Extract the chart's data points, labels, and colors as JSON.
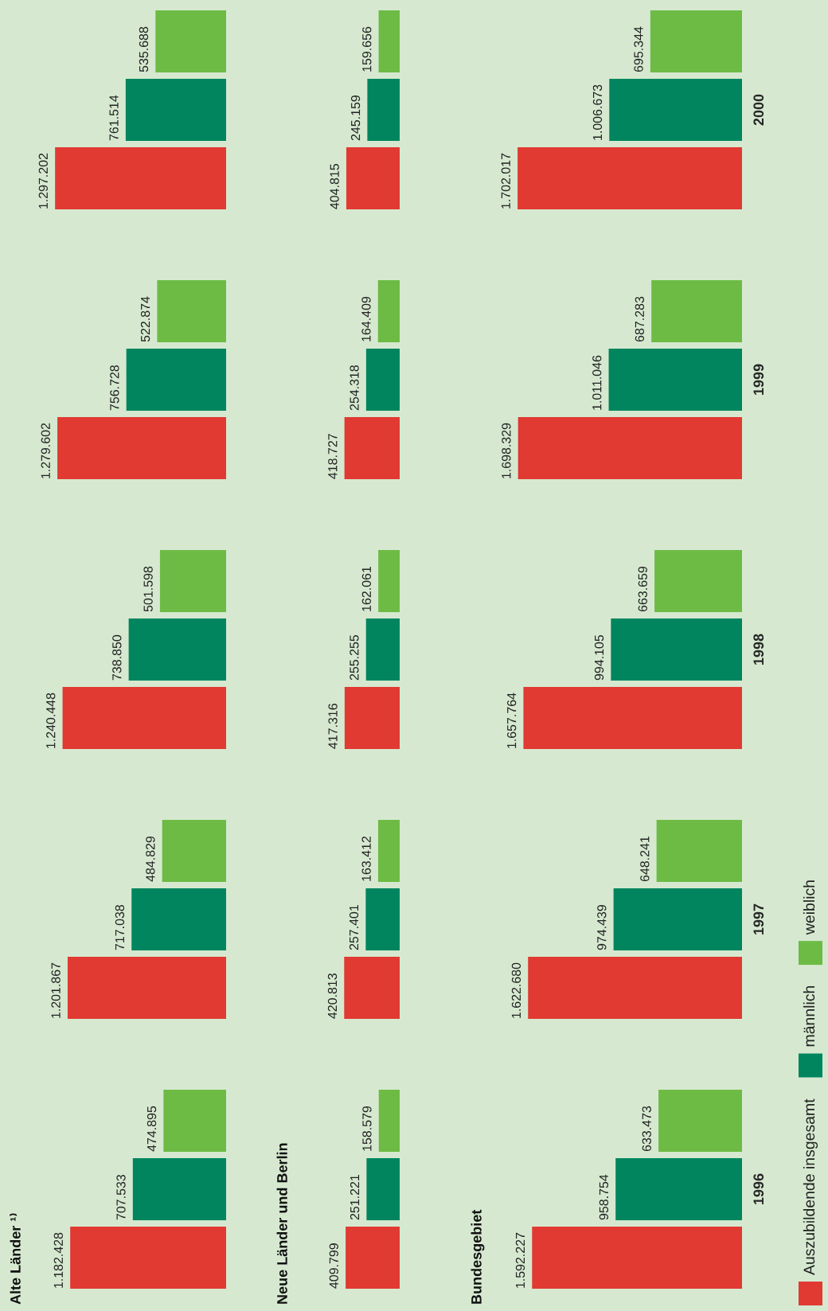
{
  "chart_data": [
    {
      "type": "bar",
      "title": "Alte Länder ¹⁾",
      "orientation": "horizontal",
      "categories": [
        "2000",
        "1999",
        "1998",
        "1997",
        "1996"
      ],
      "tick_labels": false,
      "legend": "right",
      "series": [
        {
          "name": "Auszubildende insgesamt",
          "color": "#e03a32",
          "values": [
            1297202,
            1279602,
            1240448,
            1201867,
            1182428
          ],
          "value_labels": [
            "1.297.202",
            "1.279.602",
            "1.240.448",
            "1.201.867",
            "1.182.428"
          ]
        },
        {
          "name": "männlich",
          "color": "#00855f",
          "values": [
            761514,
            756728,
            738850,
            717038,
            707533
          ],
          "value_labels": [
            "761.514",
            "756.728",
            "738.850",
            "717.038",
            "707.533"
          ]
        },
        {
          "name": "weiblich",
          "color": "#6dbb45",
          "values": [
            535688,
            522874,
            501598,
            484829,
            474895
          ],
          "value_labels": [
            "535.688",
            "522.874",
            "501.598",
            "484.829",
            "474.895"
          ]
        }
      ]
    },
    {
      "type": "bar",
      "title": "Neue Länder und Berlin",
      "orientation": "horizontal",
      "categories": [
        "2000",
        "1999",
        "1998",
        "1997",
        "1996"
      ],
      "tick_labels": false,
      "series": [
        {
          "color": "#e03a32",
          "values": [
            404815,
            418727,
            417316,
            420813,
            409799
          ],
          "value_labels": [
            "404.815",
            "418.727",
            "417.316",
            "420.813",
            "409.799"
          ]
        },
        {
          "color": "#00855f",
          "values": [
            245159,
            254318,
            255255,
            257401,
            251221
          ],
          "value_labels": [
            "245.159",
            "254.318",
            "255.255",
            "257.401",
            "251.221"
          ]
        },
        {
          "color": "#6dbb45",
          "values": [
            159656,
            164409,
            162061,
            163412,
            158579
          ],
          "value_labels": [
            "159.656",
            "164.409",
            "162.061",
            "163.412",
            "158.579"
          ]
        }
      ]
    },
    {
      "type": "bar",
      "title": "Bundesgebiet",
      "orientation": "horizontal",
      "categories": [
        "2000",
        "1999",
        "1998",
        "1997",
        "1996"
      ],
      "tick_labels": "y",
      "series": [
        {
          "color": "#e03a32",
          "values": [
            1702017,
            1698329,
            1657764,
            1622680,
            1592227
          ],
          "value_labels": [
            "1.702.017",
            "1.698.329",
            "1.657.764",
            "1.622.680",
            "1.592.227"
          ]
        },
        {
          "color": "#00855f",
          "values": [
            1006673,
            1011046,
            994105,
            974439,
            958754
          ],
          "value_labels": [
            "1.006.673",
            "1.011.046",
            "994.105",
            "974.439",
            "958.754"
          ]
        },
        {
          "color": "#6dbb45",
          "values": [
            695344,
            687283,
            663659,
            648241,
            633473
          ],
          "value_labels": [
            "695.344",
            "687.283",
            "663.659",
            "648.241",
            "633.473"
          ]
        }
      ]
    }
  ]
}
